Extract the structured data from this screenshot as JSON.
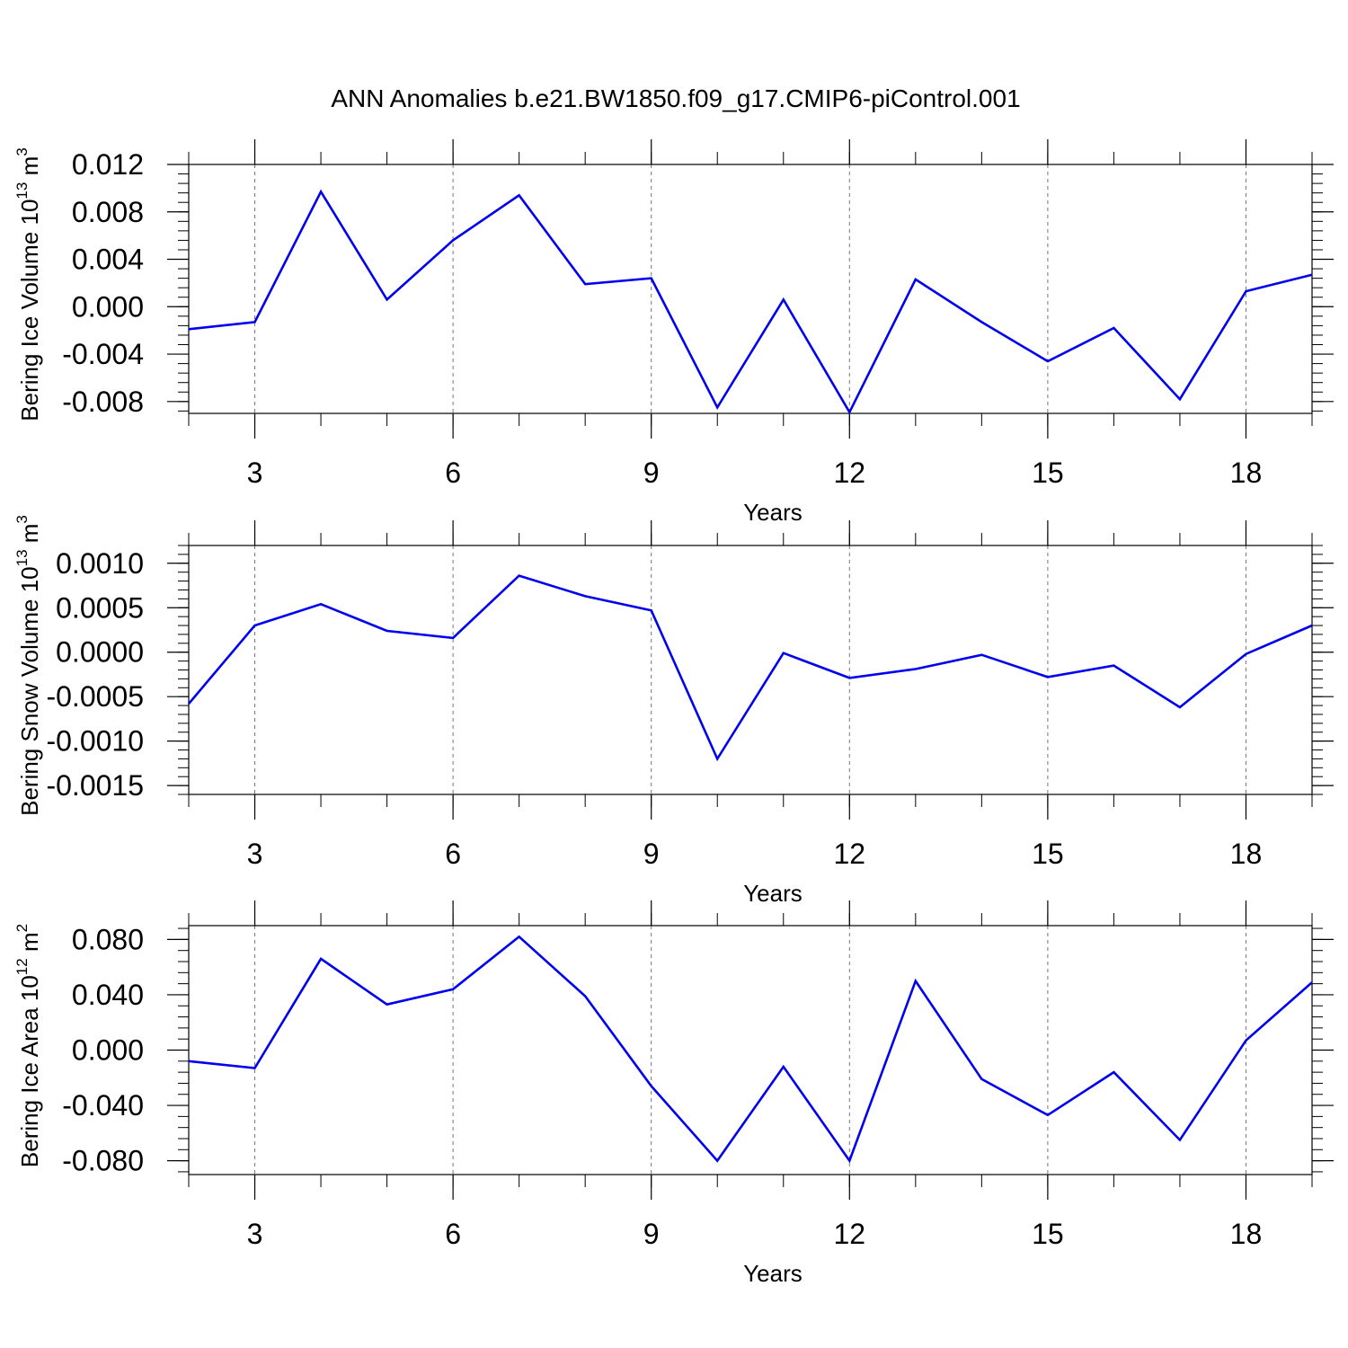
{
  "title": "ANN Anomalies b.e21.BW1850.f09_g17.CMIP6-piControl.001",
  "colors": {
    "line": "#0000ee",
    "grid": "#777777",
    "frame": "#000000"
  },
  "chart_data": [
    {
      "type": "line",
      "ylabel_main": "Bering Ice Volume 10",
      "ylabel_exp": "13",
      "ylabel_unit": " m",
      "ylabel_unit_exp": "3",
      "xlabel": "Years",
      "xlim": [
        2,
        19
      ],
      "ylim": [
        -0.009,
        0.012
      ],
      "xticks": [
        3,
        6,
        9,
        12,
        15,
        18
      ],
      "xtick_labels": [
        "3",
        "6",
        "9",
        "12",
        "15",
        "18"
      ],
      "yticks": [
        0.012,
        0.008,
        0.004,
        0.0,
        -0.004,
        -0.008
      ],
      "ytick_labels": [
        "0.012",
        "0.008",
        "0.004",
        "0.000",
        "-0.004",
        "-0.008"
      ],
      "yminor_step": 0.0008,
      "grid": "dashed vertical at major x ticks",
      "x": [
        2,
        3,
        4,
        5,
        6,
        7,
        8,
        9,
        10,
        11,
        12,
        13,
        14,
        15,
        16,
        17,
        18,
        19
      ],
      "series": [
        {
          "values": [
            -0.0019,
            -0.0013,
            0.0097,
            0.0006,
            0.0056,
            0.0094,
            0.0019,
            0.0024,
            -0.0085,
            0.0006,
            -0.0089,
            0.0023,
            -0.0013,
            -0.0046,
            -0.0018,
            -0.0078,
            0.0013,
            0.0027
          ]
        }
      ]
    },
    {
      "type": "line",
      "ylabel_main": "Bering Snow Volume 10",
      "ylabel_exp": "13",
      "ylabel_unit": " m",
      "ylabel_unit_exp": "3",
      "xlabel": "Years",
      "xlim": [
        2,
        19
      ],
      "ylim": [
        -0.0016,
        0.0012
      ],
      "xticks": [
        3,
        6,
        9,
        12,
        15,
        18
      ],
      "xtick_labels": [
        "3",
        "6",
        "9",
        "12",
        "15",
        "18"
      ],
      "yticks": [
        0.001,
        0.0005,
        0.0,
        -0.0005,
        -0.001,
        -0.0015
      ],
      "ytick_labels": [
        "0.0010",
        "0.0005",
        "0.0000",
        "-0.0005",
        "-0.0010",
        "-0.0015"
      ],
      "yminor_step": 0.0001,
      "grid": "dashed vertical at major x ticks",
      "x": [
        2,
        3,
        4,
        5,
        6,
        7,
        8,
        9,
        10,
        11,
        12,
        13,
        14,
        15,
        16,
        17,
        18,
        19
      ],
      "series": [
        {
          "values": [
            -0.00058,
            0.0003,
            0.00054,
            0.00024,
            0.00016,
            0.00086,
            0.00063,
            0.00047,
            -0.0012,
            -1e-05,
            -0.00029,
            -0.00019,
            -3e-05,
            -0.00028,
            -0.00015,
            -0.00062,
            -2e-05,
            0.0003
          ]
        }
      ]
    },
    {
      "type": "line",
      "ylabel_main": "Bering Ice Area 10",
      "ylabel_exp": "12",
      "ylabel_unit": " m",
      "ylabel_unit_exp": "2",
      "xlabel": "Years",
      "xlim": [
        2,
        19
      ],
      "ylim": [
        -0.09,
        0.09
      ],
      "xticks": [
        3,
        6,
        9,
        12,
        15,
        18
      ],
      "xtick_labels": [
        "3",
        "6",
        "9",
        "12",
        "15",
        "18"
      ],
      "yticks": [
        0.08,
        0.04,
        0.0,
        -0.04,
        -0.08
      ],
      "ytick_labels": [
        "0.080",
        "0.040",
        "0.000",
        "-0.040",
        "-0.080"
      ],
      "yminor_step": 0.008,
      "grid": "dashed vertical at major x ticks",
      "x": [
        2,
        3,
        4,
        5,
        6,
        7,
        8,
        9,
        10,
        11,
        12,
        13,
        14,
        15,
        16,
        17,
        18,
        19
      ],
      "series": [
        {
          "values": [
            -0.008,
            -0.013,
            0.066,
            0.033,
            0.044,
            0.082,
            0.039,
            -0.026,
            -0.08,
            -0.012,
            -0.08,
            0.05,
            -0.021,
            -0.047,
            -0.016,
            -0.065,
            0.007,
            0.049
          ]
        }
      ]
    }
  ]
}
